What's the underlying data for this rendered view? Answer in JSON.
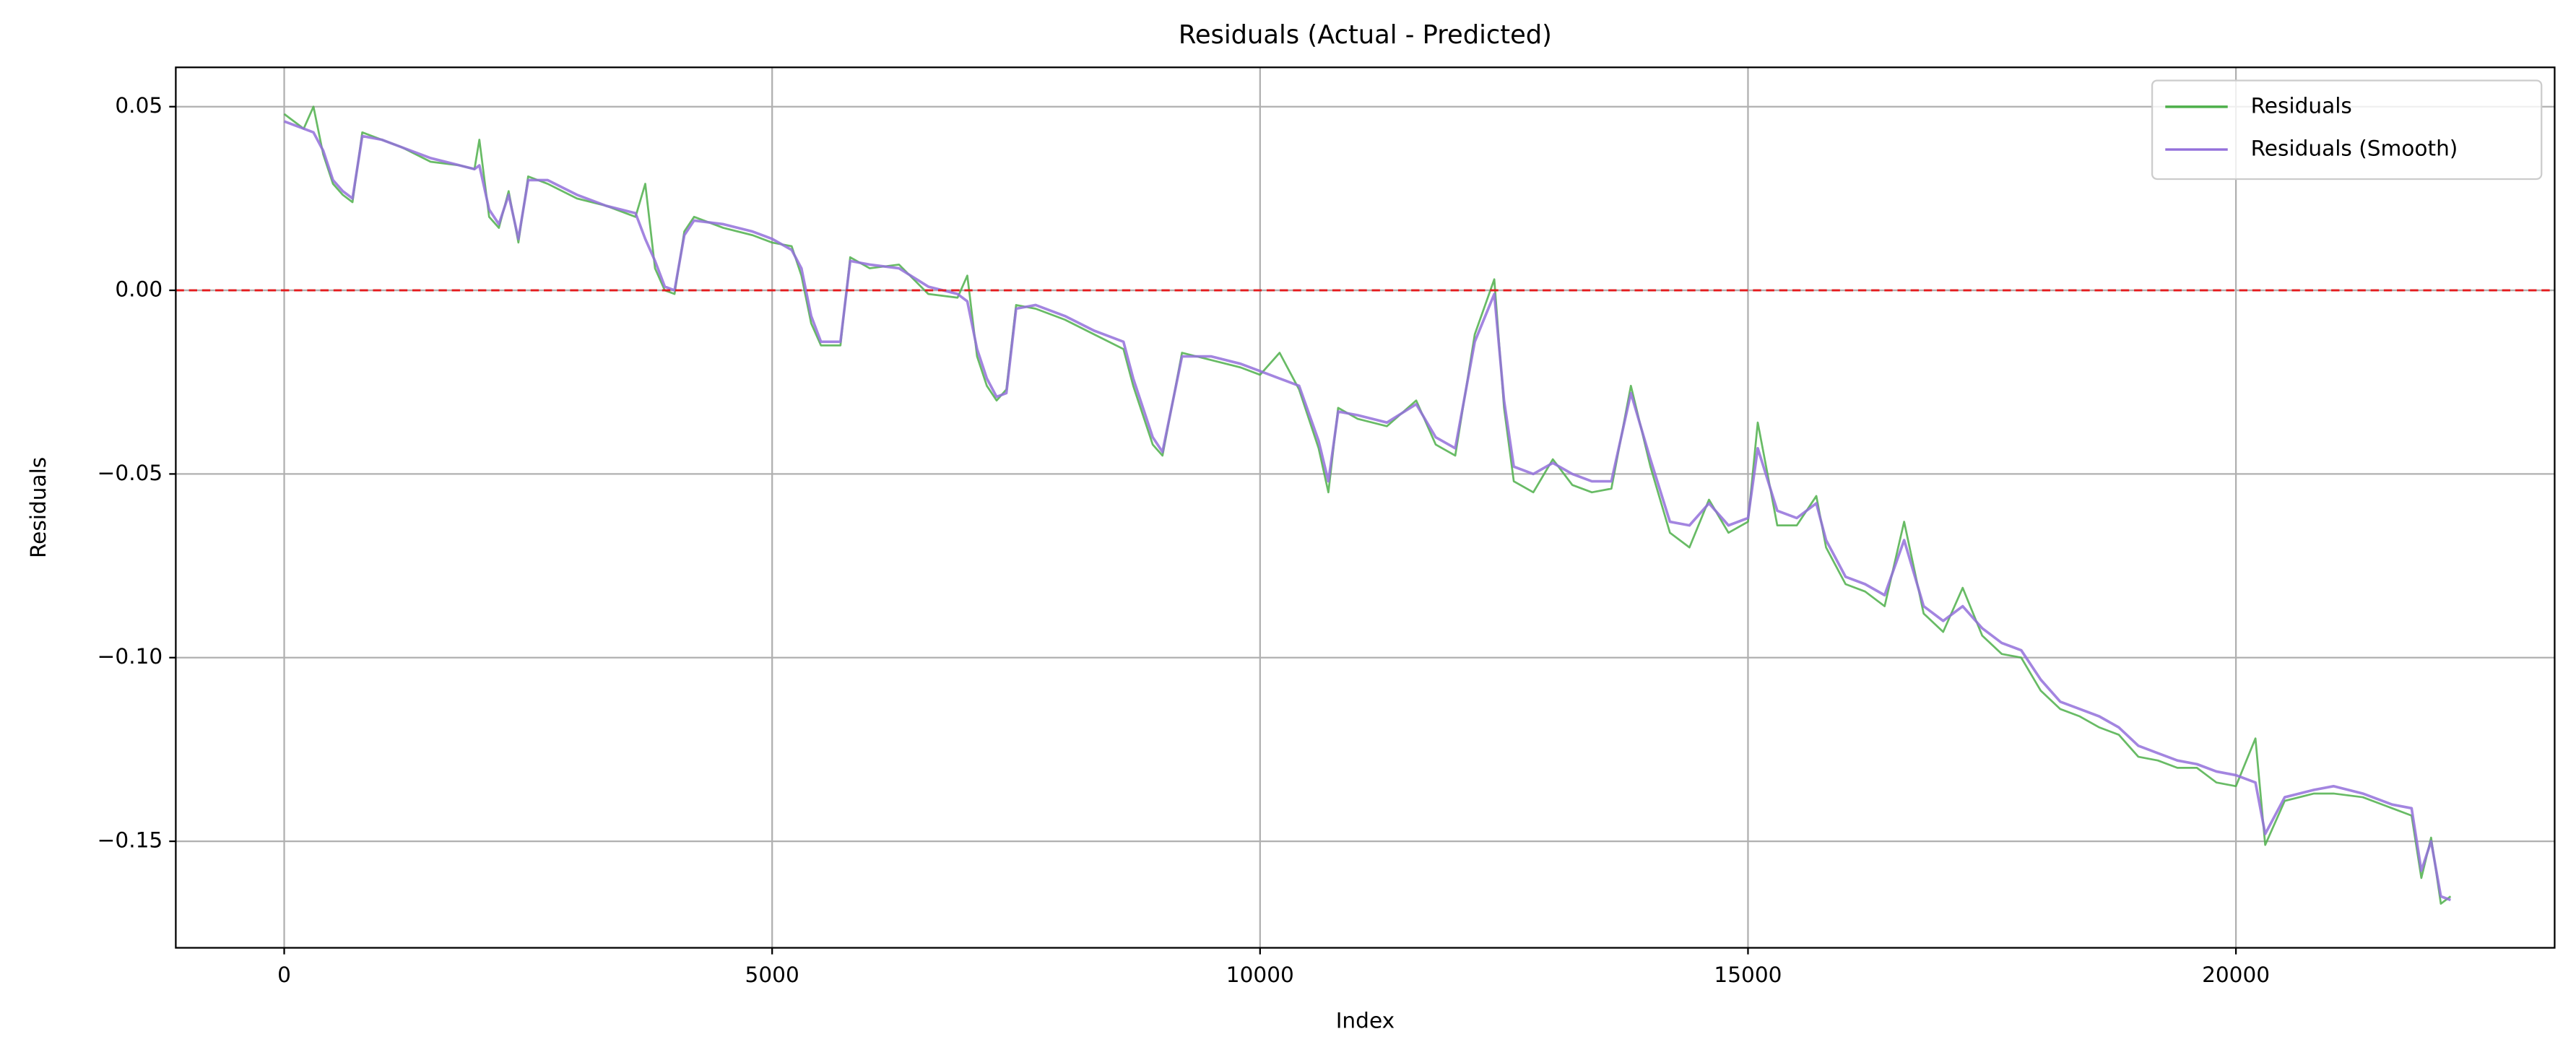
{
  "chart_data": {
    "type": "line",
    "title": "Residuals (Actual - Predicted)",
    "x_label": "Index",
    "y_label": "Residuals",
    "x": [
      0,
      200,
      300,
      400,
      500,
      600,
      700,
      800,
      1000,
      1200,
      1500,
      1800,
      1950,
      2000,
      2100,
      2200,
      2300,
      2400,
      2500,
      2700,
      3000,
      3300,
      3600,
      3700,
      3800,
      3900,
      4000,
      4100,
      4200,
      4500,
      4800,
      5000,
      5200,
      5300,
      5400,
      5500,
      5700,
      5800,
      6000,
      6300,
      6600,
      6900,
      7000,
      7100,
      7200,
      7300,
      7400,
      7500,
      7700,
      8000,
      8300,
      8600,
      8700,
      8800,
      8900,
      9000,
      9200,
      9500,
      9800,
      10000,
      10200,
      10400,
      10600,
      10700,
      10800,
      11000,
      11300,
      11600,
      11800,
      12000,
      12200,
      12400,
      12500,
      12600,
      12800,
      13000,
      13200,
      13400,
      13600,
      13800,
      14000,
      14200,
      14400,
      14600,
      14800,
      15000,
      15100,
      15300,
      15500,
      15700,
      15800,
      16000,
      16200,
      16400,
      16600,
      16800,
      17000,
      17200,
      17400,
      17600,
      17800,
      18000,
      18200,
      18400,
      18600,
      18800,
      19000,
      19200,
      19400,
      19600,
      19800,
      20000,
      20200,
      20300,
      20500,
      20800,
      21000,
      21300,
      21600,
      21800,
      21900,
      22000,
      22100,
      22200
    ],
    "series": [
      {
        "name": "Residuals",
        "color": "#4daf4a",
        "values": [
          0.048,
          0.044,
          0.05,
          0.037,
          0.029,
          0.026,
          0.024,
          0.043,
          0.041,
          0.039,
          0.035,
          0.034,
          0.033,
          0.041,
          0.02,
          0.017,
          0.027,
          0.013,
          0.031,
          0.029,
          0.025,
          0.023,
          0.02,
          0.029,
          0.006,
          0.0,
          -0.001,
          0.016,
          0.02,
          0.017,
          0.015,
          0.013,
          0.012,
          0.004,
          -0.009,
          -0.015,
          -0.015,
          0.009,
          0.006,
          0.007,
          -0.001,
          -0.002,
          0.004,
          -0.018,
          -0.026,
          -0.03,
          -0.027,
          -0.004,
          -0.005,
          -0.008,
          -0.012,
          -0.016,
          -0.026,
          -0.034,
          -0.042,
          -0.045,
          -0.017,
          -0.019,
          -0.021,
          -0.023,
          -0.017,
          -0.027,
          -0.043,
          -0.055,
          -0.032,
          -0.035,
          -0.037,
          -0.03,
          -0.042,
          -0.045,
          -0.012,
          0.003,
          -0.032,
          -0.052,
          -0.055,
          -0.046,
          -0.053,
          -0.055,
          -0.054,
          -0.026,
          -0.048,
          -0.066,
          -0.07,
          -0.057,
          -0.066,
          -0.063,
          -0.036,
          -0.064,
          -0.064,
          -0.056,
          -0.07,
          -0.08,
          -0.082,
          -0.086,
          -0.063,
          -0.088,
          -0.093,
          -0.081,
          -0.094,
          -0.099,
          -0.1,
          -0.109,
          -0.114,
          -0.116,
          -0.119,
          -0.121,
          -0.127,
          -0.128,
          -0.13,
          -0.13,
          -0.134,
          -0.135,
          -0.122,
          -0.151,
          -0.139,
          -0.137,
          -0.137,
          -0.138,
          -0.141,
          -0.143,
          -0.16,
          -0.149,
          -0.167,
          -0.165
        ]
      },
      {
        "name": "Residuals (Smooth)",
        "color": "#9370db",
        "values": [
          0.046,
          0.044,
          0.043,
          0.038,
          0.03,
          0.027,
          0.025,
          0.042,
          0.041,
          0.039,
          0.036,
          0.034,
          0.033,
          0.034,
          0.022,
          0.018,
          0.026,
          0.014,
          0.03,
          0.03,
          0.026,
          0.023,
          0.021,
          0.014,
          0.008,
          0.001,
          0.0,
          0.015,
          0.019,
          0.018,
          0.016,
          0.014,
          0.011,
          0.006,
          -0.007,
          -0.014,
          -0.014,
          0.008,
          0.007,
          0.006,
          0.001,
          -0.001,
          -0.003,
          -0.016,
          -0.024,
          -0.029,
          -0.028,
          -0.005,
          -0.004,
          -0.007,
          -0.011,
          -0.014,
          -0.024,
          -0.032,
          -0.04,
          -0.044,
          -0.018,
          -0.018,
          -0.02,
          -0.022,
          -0.024,
          -0.026,
          -0.041,
          -0.052,
          -0.033,
          -0.034,
          -0.036,
          -0.031,
          -0.04,
          -0.043,
          -0.014,
          -0.001,
          -0.03,
          -0.048,
          -0.05,
          -0.047,
          -0.05,
          -0.052,
          -0.052,
          -0.028,
          -0.046,
          -0.063,
          -0.064,
          -0.058,
          -0.064,
          -0.062,
          -0.043,
          -0.06,
          -0.062,
          -0.058,
          -0.068,
          -0.078,
          -0.08,
          -0.083,
          -0.068,
          -0.086,
          -0.09,
          -0.086,
          -0.092,
          -0.096,
          -0.098,
          -0.106,
          -0.112,
          -0.114,
          -0.116,
          -0.119,
          -0.124,
          -0.126,
          -0.128,
          -0.129,
          -0.131,
          -0.132,
          -0.134,
          -0.148,
          -0.138,
          -0.136,
          -0.135,
          -0.137,
          -0.14,
          -0.141,
          -0.158,
          -0.15,
          -0.165,
          -0.166
        ]
      }
    ],
    "hlines": [
      {
        "y": 0,
        "color": "#e41a1c"
      }
    ],
    "xlim": [
      -1111,
      23266
    ],
    "ylim": [
      -0.179,
      0.0607
    ],
    "xticks": [
      0,
      5000,
      10000,
      15000,
      20000
    ],
    "yticks": [
      {
        "value": -0.15,
        "label": "−0.15"
      },
      {
        "value": -0.1,
        "label": "−0.10"
      },
      {
        "value": -0.05,
        "label": "−0.05"
      },
      {
        "value": 0,
        "label": "0.00"
      },
      0.05
    ],
    "grid": true,
    "legend": "upper right"
  }
}
